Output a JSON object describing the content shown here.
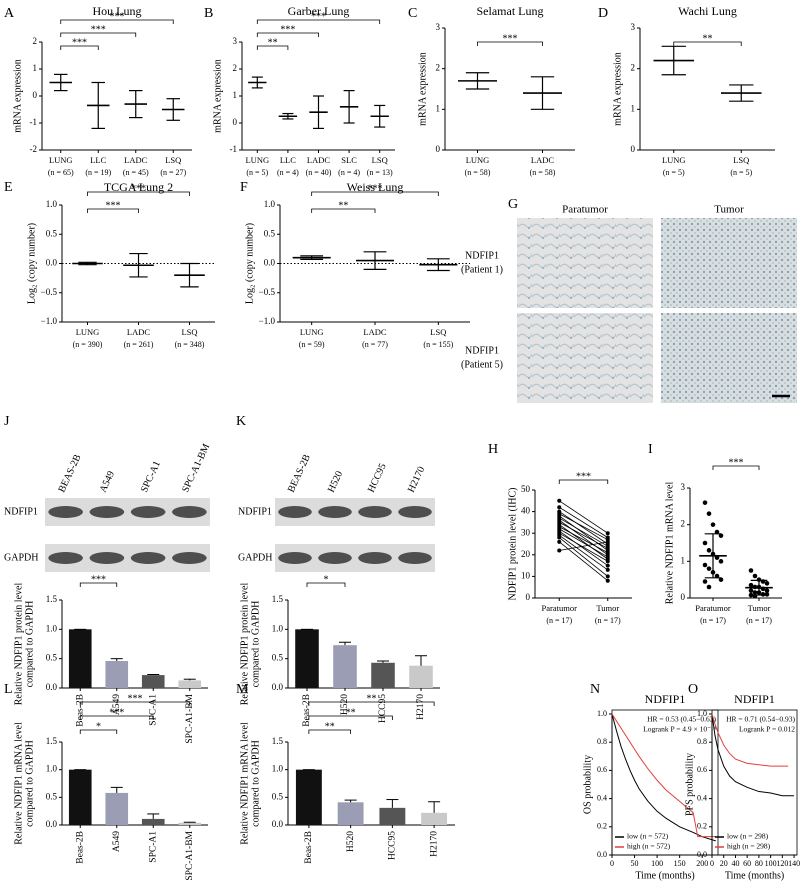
{
  "chart_data": [
    {
      "label": "A",
      "type": "dot",
      "title": "Hou Lung",
      "ylabel": [
        "mRNA expression"
      ],
      "categories": [
        "LUNG",
        "LLC",
        "LADC",
        "LSQ"
      ],
      "n_labels": [
        "(n = 65)",
        "(n = 19)",
        "(n = 45)",
        "(n = 27)"
      ],
      "means": [
        0.5,
        -0.35,
        -0.3,
        -0.5
      ],
      "sds": [
        0.3,
        0.85,
        0.5,
        0.4
      ],
      "ylim": [
        -2,
        2
      ],
      "yticks": [
        -2,
        -1,
        0,
        1,
        2
      ],
      "comparisons": [
        {
          "groups": [
            "LUNG",
            "LLC"
          ],
          "label": "***"
        },
        {
          "groups": [
            "LUNG",
            "LADC"
          ],
          "label": "***"
        },
        {
          "groups": [
            "LUNG",
            "LSQ"
          ],
          "label": "***"
        }
      ]
    },
    {
      "label": "B",
      "type": "dot",
      "title": "Garber Lung",
      "ylabel": [
        "mRNA expression"
      ],
      "categories": [
        "LUNG",
        "LLC",
        "LADC",
        "SLC",
        "LSQ"
      ],
      "n_labels": [
        "(n = 5)",
        "(n = 4)",
        "(n = 40)",
        "(n = 4)",
        "(n = 13)"
      ],
      "means": [
        1.5,
        0.25,
        0.4,
        0.6,
        0.25
      ],
      "sds": [
        0.2,
        0.1,
        0.6,
        0.6,
        0.4
      ],
      "ylim": [
        -1,
        3
      ],
      "yticks": [
        -1,
        0,
        1,
        2,
        3
      ],
      "comparisons": [
        {
          "groups": [
            "LUNG",
            "LLC"
          ],
          "label": "**"
        },
        {
          "groups": [
            "LUNG",
            "LADC"
          ],
          "label": "***"
        },
        {
          "groups": [
            "LUNG",
            "LSQ"
          ],
          "label": "***"
        }
      ]
    },
    {
      "label": "C",
      "type": "dot",
      "title": "Selamat Lung",
      "ylabel": [
        "mRNA expression"
      ],
      "categories": [
        "LUNG",
        "LADC"
      ],
      "n_labels": [
        "(n = 58)",
        "(n = 58)"
      ],
      "means": [
        1.7,
        1.4
      ],
      "sds": [
        0.2,
        0.4
      ],
      "ylim": [
        0,
        3
      ],
      "yticks": [
        0,
        1,
        2,
        3
      ],
      "comparisons": [
        {
          "groups": [
            "LUNG",
            "LADC"
          ],
          "label": "***"
        }
      ]
    },
    {
      "label": "D",
      "type": "dot",
      "title": "Wachi Lung",
      "ylabel": [
        "mRNA expression"
      ],
      "categories": [
        "LUNG",
        "LSQ"
      ],
      "n_labels": [
        "(n = 5)",
        "(n = 5)"
      ],
      "means": [
        2.2,
        1.4
      ],
      "sds": [
        0.35,
        0.2
      ],
      "ylim": [
        0,
        3
      ],
      "yticks": [
        0,
        1,
        2,
        3
      ],
      "comparisons": [
        {
          "groups": [
            "LUNG",
            "LSQ"
          ],
          "label": "**"
        }
      ]
    },
    {
      "label": "E",
      "type": "dot",
      "title": "TCGA Lung 2",
      "ylabel": [
        "Log₂ (copy number)"
      ],
      "categories": [
        "LUNG",
        "LADC",
        "LSQ"
      ],
      "n_labels": [
        "(n = 390)",
        "(n = 261)",
        "(n = 348)"
      ],
      "means": [
        0.0,
        -0.03,
        -0.2
      ],
      "sds": [
        0.02,
        0.2,
        0.2
      ],
      "ylim": [
        -1,
        1
      ],
      "yticks": [
        {
          "value": -1,
          "label": "−1.0"
        },
        {
          "value": -0.5,
          "label": "−0.5"
        },
        {
          "value": 0,
          "label": "0.0"
        },
        {
          "value": 0.5,
          "label": "0.5"
        },
        {
          "value": 1,
          "label": "1.0"
        }
      ],
      "ref_line": 0,
      "comparisons": [
        {
          "groups": [
            "LUNG",
            "LADC"
          ],
          "label": "***"
        },
        {
          "groups": [
            "LUNG",
            "LSQ"
          ],
          "label": "***"
        }
      ]
    },
    {
      "label": "F",
      "type": "dot",
      "title": "Weiss Lung",
      "ylabel": [
        "Log₂ (copy number)"
      ],
      "categories": [
        "LUNG",
        "LADC",
        "LSQ"
      ],
      "n_labels": [
        "(n = 59)",
        "(n = 77)",
        "(n = 155)"
      ],
      "means": [
        0.1,
        0.05,
        -0.02
      ],
      "sds": [
        0.03,
        0.15,
        0.1
      ],
      "ylim": [
        -1,
        1
      ],
      "yticks": [
        {
          "value": -1,
          "label": "−1.0"
        },
        {
          "value": -0.5,
          "label": "−0.5"
        },
        {
          "value": 0,
          "label": "0.0"
        },
        {
          "value": 0.5,
          "label": "0.5"
        },
        {
          "value": 1,
          "label": "1.0"
        }
      ],
      "ref_line": 0,
      "comparisons": [
        {
          "groups": [
            "LUNG",
            "LADC"
          ],
          "label": "**"
        },
        {
          "groups": [
            "LUNG",
            "LSQ"
          ],
          "label": "***"
        }
      ]
    },
    {
      "label": "G",
      "type": "ihc",
      "columns": [
        "Paratumor",
        "Tumor"
      ],
      "rows": [
        [
          "NDFIP1",
          "(Patient 1)"
        ],
        [
          "NDFIP1",
          "(Patient 5)"
        ]
      ]
    },
    {
      "label": "J",
      "type": "bar",
      "blot": {
        "lanes": [
          "BEAS-2B",
          "A549",
          "SPC-A1",
          "SPC-A1-BM"
        ],
        "rows": [
          "NDFIP1",
          "GAPDH"
        ]
      },
      "ylabel": [
        "Relative NDFIP1 protein level",
        "compared to GAPDH"
      ],
      "categories": [
        "Beas-2B",
        "A549",
        "SPC-A1",
        "SPC-A1-BM"
      ],
      "values": [
        1.0,
        0.46,
        0.22,
        0.13
      ],
      "errors": [
        0,
        0.04,
        0.01,
        0.02
      ],
      "colors": [
        "#111111",
        "#9a9db3",
        "#555555",
        "#c9c9c9"
      ],
      "ylim": [
        0,
        1.5
      ],
      "yticks": [
        {
          "value": 0,
          "label": "0.0"
        },
        {
          "value": 0.5,
          "label": "0.5"
        },
        {
          "value": 1,
          "label": "1.0"
        },
        {
          "value": 1.5,
          "label": "1.5"
        }
      ],
      "comparisons": [
        {
          "groups": [
            "Beas-2B",
            "A549"
          ],
          "label": "***"
        },
        {
          "groups": [
            "Beas-2B",
            "SPC-A1"
          ],
          "label": "***"
        },
        {
          "groups": [
            "Beas-2B",
            "SPC-A1-BM"
          ],
          "label": "***"
        }
      ]
    },
    {
      "label": "K",
      "type": "bar",
      "blot": {
        "lanes": [
          "BEAS-2B",
          "H520",
          "HCC95",
          "H2170"
        ],
        "rows": [
          "NDFIP1",
          "GAPDH"
        ]
      },
      "ylabel": [
        "Relative NDFIP1 protein level",
        "compared to GAPDH"
      ],
      "categories": [
        "Beas-2B",
        "H520",
        "HCC95",
        "H2170"
      ],
      "values": [
        1.0,
        0.73,
        0.43,
        0.38
      ],
      "errors": [
        0,
        0.05,
        0.03,
        0.17
      ],
      "colors": [
        "#111111",
        "#9a9db3",
        "#555555",
        "#c9c9c9"
      ],
      "ylim": [
        0,
        1.5
      ],
      "yticks": [
        {
          "value": 0,
          "label": "0.0"
        },
        {
          "value": 0.5,
          "label": "0.5"
        },
        {
          "value": 1,
          "label": "1.0"
        },
        {
          "value": 1.5,
          "label": "1.5"
        }
      ],
      "comparisons": [
        {
          "groups": [
            "Beas-2B",
            "H520"
          ],
          "label": "*"
        },
        {
          "groups": [
            "Beas-2B",
            "HCC95"
          ],
          "label": "***"
        },
        {
          "groups": [
            "Beas-2B",
            "H2170"
          ],
          "label": "***"
        }
      ]
    },
    {
      "label": "H",
      "type": "paired",
      "ylabel": [
        "NDFIP1 protein level (IHC)"
      ],
      "categories": [
        "Paratumor",
        "Tumor"
      ],
      "n_labels": [
        "(n = 17)",
        "(n = 17)"
      ],
      "values": [
        [
          45,
          42,
          40,
          39,
          38,
          37,
          36,
          35,
          34,
          33,
          32,
          31,
          30,
          29,
          28,
          26,
          22
        ],
        [
          30,
          28,
          25,
          27,
          22,
          24,
          20,
          23,
          18,
          21,
          19,
          15,
          17,
          13,
          10,
          8,
          26
        ]
      ],
      "ylim": [
        0,
        50
      ],
      "yticks": [
        0,
        10,
        20,
        30,
        40,
        50
      ],
      "comparisons": [
        {
          "groups": [
            "Paratumor",
            "Tumor"
          ],
          "label": "***"
        }
      ]
    },
    {
      "label": "I",
      "type": "dot",
      "ylabel": [
        "Relative NDFIP1 mRNA level"
      ],
      "categories": [
        "Paratumor",
        "Tumor"
      ],
      "n_labels": [
        "(n = 17)",
        "(n = 17)"
      ],
      "means": [
        1.15,
        0.28
      ],
      "sds": [
        0.6,
        0.2
      ],
      "points": [
        [
          2.6,
          2.3,
          2.0,
          1.8,
          1.7,
          1.5,
          1.3,
          1.2,
          1.1,
          1.0,
          0.9,
          0.8,
          0.7,
          0.6,
          0.5,
          0.45,
          0.3
        ],
        [
          0.75,
          0.6,
          0.5,
          0.45,
          0.4,
          0.35,
          0.3,
          0.3,
          0.25,
          0.2,
          0.2,
          0.15,
          0.15,
          0.1,
          0.1,
          0.08,
          0.05
        ]
      ],
      "ylim": [
        0,
        3
      ],
      "yticks": [
        0,
        1,
        2,
        3
      ],
      "comparisons": [
        {
          "groups": [
            "Paratumor",
            "Tumor"
          ],
          "label": "***"
        }
      ]
    },
    {
      "label": "L",
      "type": "bar",
      "ylabel": [
        "Relative NDFIP1 mRNA level",
        "compared to GAPDH"
      ],
      "categories": [
        "Beas-2B",
        "A549",
        "SPC-A1",
        "SPC-A1-BM"
      ],
      "values": [
        1.0,
        0.58,
        0.11,
        0.04
      ],
      "errors": [
        0,
        0.1,
        0.09,
        0.01
      ],
      "colors": [
        "#111111",
        "#9a9db3",
        "#555555",
        "#c9c9c9"
      ],
      "ylim": [
        0,
        1.5
      ],
      "yticks": [
        {
          "value": 0,
          "label": "0.0"
        },
        {
          "value": 0.5,
          "label": "0.5"
        },
        {
          "value": 1,
          "label": "1.0"
        },
        {
          "value": 1.5,
          "label": "1.5"
        }
      ],
      "comparisons": [
        {
          "groups": [
            "Beas-2B",
            "A549"
          ],
          "label": "*"
        },
        {
          "groups": [
            "Beas-2B",
            "SPC-A1"
          ],
          "label": "***"
        },
        {
          "groups": [
            "Beas-2B",
            "SPC-A1-BM"
          ],
          "label": "***"
        }
      ]
    },
    {
      "label": "M",
      "type": "bar",
      "ylabel": [
        "Relative NDFIP1 mRNA level",
        "compared to GAPDH"
      ],
      "categories": [
        "Beas-2B",
        "H520",
        "HCC95",
        "H2170"
      ],
      "values": [
        1.0,
        0.41,
        0.31,
        0.22
      ],
      "errors": [
        0,
        0.04,
        0.15,
        0.2
      ],
      "colors": [
        "#111111",
        "#9a9db3",
        "#555555",
        "#c9c9c9"
      ],
      "ylim": [
        0,
        1.5
      ],
      "yticks": [
        {
          "value": 0,
          "label": "0.0"
        },
        {
          "value": 0.5,
          "label": "0.5"
        },
        {
          "value": 1,
          "label": "1.0"
        },
        {
          "value": 1.5,
          "label": "1.5"
        }
      ],
      "comparisons": [
        {
          "groups": [
            "Beas-2B",
            "H520"
          ],
          "label": "**"
        },
        {
          "groups": [
            "Beas-2B",
            "HCC95"
          ],
          "label": "**"
        },
        {
          "groups": [
            "Beas-2B",
            "H2170"
          ],
          "label": "**"
        }
      ]
    },
    {
      "label": "N",
      "type": "km",
      "title": "NDFIP1",
      "ylabel": [
        "OS probability"
      ],
      "xlabel": "Time (months)",
      "annotations": [
        "HR = 0.53 (0.45−0.63)",
        "Logrank P = 4.9 × 10⁻¹⁴"
      ],
      "xlim": [
        0,
        235
      ],
      "xticks": [
        0,
        50,
        100,
        150,
        200
      ],
      "ylim": [
        0,
        1
      ],
      "yticks": [
        {
          "value": 0,
          "label": "0.0"
        },
        {
          "value": 0.2,
          "label": "0.2"
        },
        {
          "value": 0.4,
          "label": "0.4"
        },
        {
          "value": 0.6,
          "label": "0.6"
        },
        {
          "value": 0.8,
          "label": "0.8"
        },
        {
          "value": 1,
          "label": "1.0"
        }
      ],
      "series": [
        {
          "name": "low (n = 572)",
          "color": "#000000",
          "x": [
            0,
            10,
            20,
            30,
            40,
            50,
            60,
            80,
            100,
            120,
            150,
            180,
            200,
            230
          ],
          "y": [
            1,
            0.88,
            0.77,
            0.68,
            0.6,
            0.53,
            0.47,
            0.38,
            0.31,
            0.26,
            0.2,
            0.16,
            0.13,
            0.1
          ]
        },
        {
          "name": "high (n = 572)",
          "color": "#e0413a",
          "x": [
            0,
            10,
            20,
            30,
            40,
            50,
            60,
            80,
            100,
            120,
            150,
            180,
            190,
            230
          ],
          "y": [
            1,
            0.95,
            0.9,
            0.85,
            0.8,
            0.75,
            0.7,
            0.61,
            0.53,
            0.46,
            0.38,
            0.3,
            0.13,
            0.13
          ]
        }
      ]
    },
    {
      "label": "O",
      "type": "km",
      "title": "NDFIP1",
      "ylabel": [
        "PFS probability"
      ],
      "xlabel": "Time (months)",
      "annotations": [
        "HR = 0.71 (0.54−0.93)",
        "Logrank P = 0.012"
      ],
      "xlim": [
        0,
        145
      ],
      "xticks": [
        0,
        20,
        40,
        60,
        80,
        100,
        120,
        140
      ],
      "ylim": [
        0,
        1
      ],
      "yticks": [
        {
          "value": 0,
          "label": "0.0"
        },
        {
          "value": 0.2,
          "label": "0.2"
        },
        {
          "value": 0.4,
          "label": "0.4"
        },
        {
          "value": 0.6,
          "label": "0.6"
        },
        {
          "value": 0.8,
          "label": "0.8"
        },
        {
          "value": 1,
          "label": "1.0"
        }
      ],
      "series": [
        {
          "name": "low (n = 298)",
          "color": "#000000",
          "x": [
            0,
            5,
            10,
            20,
            30,
            40,
            60,
            80,
            100,
            120,
            140
          ],
          "y": [
            1,
            0.85,
            0.75,
            0.63,
            0.56,
            0.52,
            0.48,
            0.45,
            0.44,
            0.42,
            0.42
          ]
        },
        {
          "name": "high (n = 298)",
          "color": "#e0413a",
          "x": [
            0,
            5,
            10,
            20,
            30,
            40,
            60,
            80,
            100,
            120,
            130
          ],
          "y": [
            1,
            0.93,
            0.87,
            0.78,
            0.72,
            0.68,
            0.65,
            0.64,
            0.63,
            0.63,
            0.63
          ]
        }
      ]
    }
  ]
}
